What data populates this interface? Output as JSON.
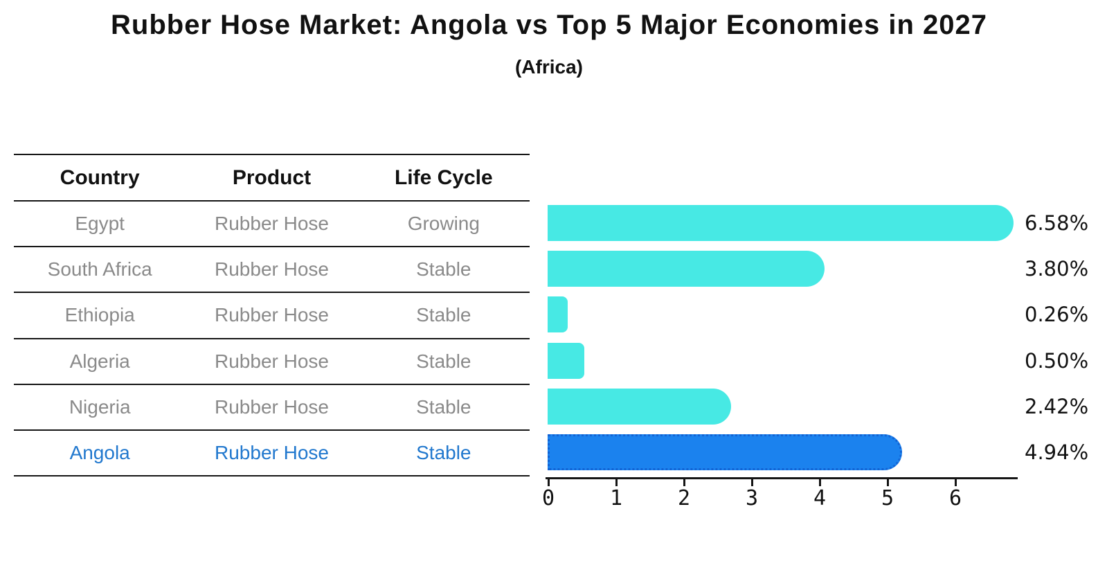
{
  "title": "Rubber Hose Market: Angola vs Top 5 Major Economies in 2027",
  "subtitle": "(Africa)",
  "table": {
    "headers": [
      "Country",
      "Product",
      "Life Cycle"
    ],
    "rows": [
      {
        "country": "Egypt",
        "product": "Rubber Hose",
        "life_cycle": "Growing",
        "highlighted": false
      },
      {
        "country": "South Africa",
        "product": "Rubber Hose",
        "life_cycle": "Stable",
        "highlighted": false
      },
      {
        "country": "Ethiopia",
        "product": "Rubber Hose",
        "life_cycle": "Stable",
        "highlighted": false
      },
      {
        "country": "Algeria",
        "product": "Rubber Hose",
        "life_cycle": "Stable",
        "highlighted": false
      },
      {
        "country": "Nigeria",
        "product": "Rubber Hose",
        "life_cycle": "Stable",
        "highlighted": false
      },
      {
        "country": "Angola",
        "product": "Rubber Hose",
        "life_cycle": "Stable",
        "highlighted": true
      }
    ]
  },
  "chart_data": {
    "type": "bar",
    "orientation": "horizontal",
    "title": "Rubber Hose Market: Angola vs Top 5 Major Economies in 2027",
    "subtitle": "(Africa)",
    "categories": [
      "Egypt",
      "South Africa",
      "Ethiopia",
      "Algeria",
      "Nigeria",
      "Angola"
    ],
    "values": [
      6.58,
      3.8,
      0.26,
      0.5,
      2.42,
      4.94
    ],
    "value_labels": [
      "6.58%",
      "3.80%",
      "0.26%",
      "0.50%",
      "2.42%",
      "4.94%"
    ],
    "x_ticks": [
      "0",
      "1",
      "2",
      "3",
      "4",
      "5",
      "6"
    ],
    "xlim": [
      0,
      6.9
    ],
    "grid": false,
    "legend": false,
    "highlight_index": 5,
    "colors": {
      "bar": "#47E9E4",
      "highlight_bar": "#1B82EE",
      "highlight_border": "#1263D4",
      "highlight_text": "#2178CE",
      "row_text": "#8A8A8A",
      "header_text": "#111111",
      "axis": "#151515",
      "value_text": "#111111"
    }
  }
}
